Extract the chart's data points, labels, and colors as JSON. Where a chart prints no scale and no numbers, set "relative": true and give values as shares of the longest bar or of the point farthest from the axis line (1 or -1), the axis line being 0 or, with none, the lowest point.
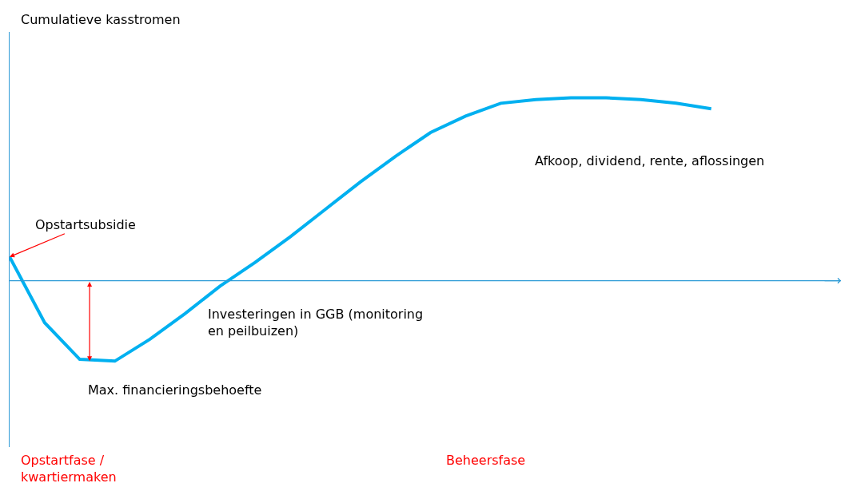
{
  "chart_data": {
    "type": "line",
    "relative": true,
    "categories": [
      null,
      null,
      null,
      null,
      null,
      null,
      null,
      null,
      null,
      null,
      null,
      null,
      null,
      null,
      null,
      null,
      null,
      null,
      null,
      null,
      null
    ],
    "series": [
      {
        "color": "#00b0f0",
        "values": [
          0.13,
          -0.23,
          -0.43,
          -0.44,
          -0.32,
          -0.18,
          -0.03,
          0.1,
          0.24,
          0.39,
          0.54,
          0.68,
          0.81,
          0.9,
          0.97,
          0.99,
          1.0,
          1.0,
          0.99,
          0.97,
          0.94
        ]
      }
    ],
    "annotations": [
      "Opstartsubsidie",
      "Afkoop, dividend, rente, aflossingen",
      "Investeringen in GGB (monitoring\nen peilbuizen)",
      "Max. financieringsbehoefte",
      "Opstartfase /\nkwartiermaken",
      "Beheersfase",
      "Cumulatieve kasstromen"
    ],
    "ref_lines": [
      {
        "axis": "y",
        "value": 0,
        "color": "#2e9bd6"
      }
    ],
    "marker": "none",
    "line_style": "solid"
  }
}
